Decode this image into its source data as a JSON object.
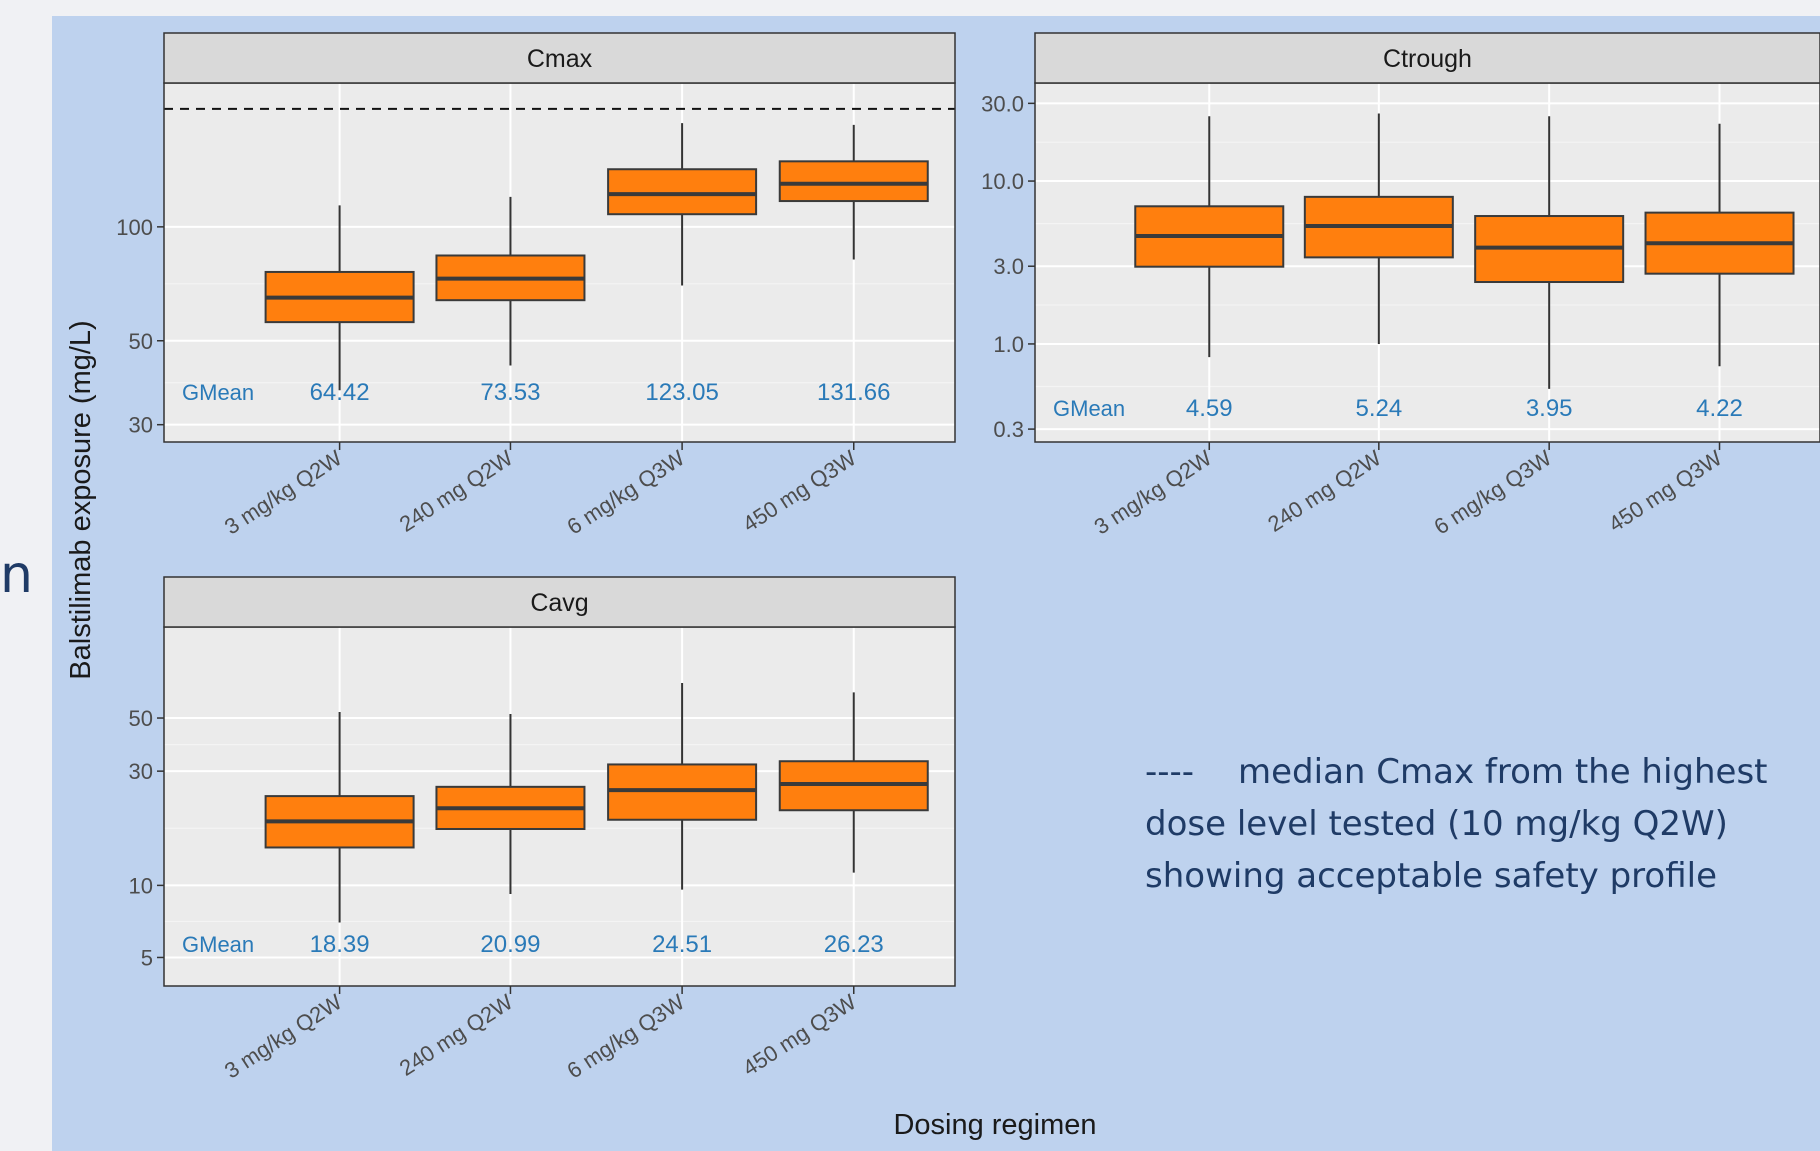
{
  "colors": {
    "page_background": "#f0f1f4",
    "figure_background": "#bed2ee",
    "panel_background": "#ebebeb",
    "strip_background": "#d9d9d9",
    "box_fill": "#ff7f0e",
    "box_line": "#3a3a3a",
    "gmean_text": "#2a7ab8",
    "note_text": "#1f3b66",
    "axis_text": "#4d4d4d"
  },
  "edge_text": "n",
  "ylabel": "Balstilimab exposure (mg/L)",
  "xlabel": "Dosing regimen",
  "gmean_label": "GMean",
  "note": {
    "dashes": "----",
    "line1": "median Cmax from the highest",
    "line2": "dose level tested (10 mg/kg Q2W)",
    "line3": "showing acceptable safety profile"
  },
  "chart_data": [
    {
      "type": "box",
      "title": "Cmax",
      "y_scale": "log",
      "ylim": [
        27,
        240
      ],
      "yticks": [
        30,
        50,
        100
      ],
      "ytick_labels": [
        "30",
        "50",
        "100"
      ],
      "reference_line": 205,
      "categories": [
        "3 mg/kg Q2W",
        "240 mg Q2W",
        "6 mg/kg Q3W",
        "450 mg Q3W"
      ],
      "boxes": [
        {
          "min": 37,
          "q1": 56,
          "median": 65,
          "q3": 76,
          "max": 114
        },
        {
          "min": 43,
          "q1": 64,
          "median": 73,
          "q3": 84,
          "max": 120
        },
        {
          "min": 70,
          "q1": 108,
          "median": 122,
          "q3": 142,
          "max": 188
        },
        {
          "min": 82,
          "q1": 117,
          "median": 130,
          "q3": 149,
          "max": 186
        }
      ],
      "gmean": [
        "64.42",
        "73.53",
        "123.05",
        "131.66"
      ]
    },
    {
      "type": "box",
      "title": "Ctrough",
      "y_scale": "log",
      "ylim": [
        0.25,
        40
      ],
      "yticks": [
        0.3,
        1.0,
        3.0,
        10.0,
        30.0
      ],
      "ytick_labels": [
        "0.3",
        "1.0",
        "3.0",
        "10.0",
        "30.0"
      ],
      "categories": [
        "3 mg/kg Q2W",
        "240 mg Q2W",
        "6 mg/kg Q3W",
        "450 mg Q3W"
      ],
      "boxes": [
        {
          "min": 0.83,
          "q1": 2.98,
          "median": 4.6,
          "q3": 7.0,
          "max": 25.0
        },
        {
          "min": 1.0,
          "q1": 3.4,
          "median": 5.3,
          "q3": 8.0,
          "max": 26.0
        },
        {
          "min": 0.53,
          "q1": 2.4,
          "median": 3.9,
          "q3": 6.1,
          "max": 25.0
        },
        {
          "min": 0.73,
          "q1": 2.7,
          "median": 4.15,
          "q3": 6.4,
          "max": 22.5
        }
      ],
      "gmean": [
        "4.59",
        "5.24",
        "3.95",
        "4.22"
      ]
    },
    {
      "type": "box",
      "title": "Cavg",
      "y_scale": "log",
      "ylim": [
        3.8,
        120
      ],
      "yticks": [
        5,
        10,
        30,
        50
      ],
      "ytick_labels": [
        "5",
        "10",
        "30",
        "50"
      ],
      "categories": [
        "3 mg/kg Q2W",
        "240 mg Q2W",
        "6 mg/kg Q3W",
        "450 mg Q3W"
      ],
      "boxes": [
        {
          "min": 7.0,
          "q1": 14.4,
          "median": 18.5,
          "q3": 23.6,
          "max": 53
        },
        {
          "min": 9.2,
          "q1": 17.2,
          "median": 21.0,
          "q3": 25.8,
          "max": 52
        },
        {
          "min": 9.6,
          "q1": 18.8,
          "median": 25.0,
          "q3": 32.0,
          "max": 70
        },
        {
          "min": 11.3,
          "q1": 20.6,
          "median": 26.5,
          "q3": 33.0,
          "max": 64
        }
      ],
      "gmean": [
        "18.39",
        "20.99",
        "24.51",
        "26.23"
      ]
    }
  ]
}
